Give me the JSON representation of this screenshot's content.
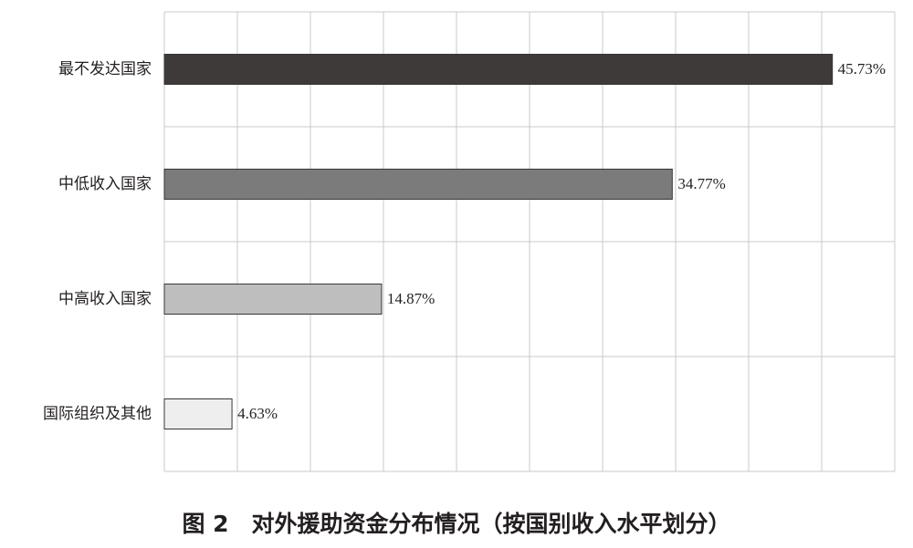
{
  "chart_data": {
    "type": "bar",
    "orientation": "horizontal",
    "title": "图 2　对外援助资金分布情况（按国别收入水平划分）",
    "categories": [
      "最不发达国家",
      "中低收入国家",
      "中高收入国家",
      "国际组织及其他"
    ],
    "values": [
      45.73,
      34.77,
      14.87,
      4.63
    ],
    "value_labels": [
      "45.73%",
      "34.77%",
      "14.87%",
      "4.63%"
    ],
    "colors": [
      "#3e3a3a",
      "#7b7b7b",
      "#bebebe",
      "#eeeeee"
    ],
    "xlim": [
      0,
      50
    ],
    "xticks": [
      0,
      5,
      10,
      15,
      20,
      25,
      30,
      35,
      40,
      45,
      50
    ],
    "grid": true
  }
}
